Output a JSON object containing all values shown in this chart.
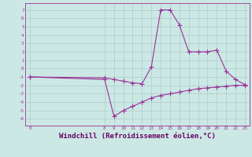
{
  "background_color": "#cce8e4",
  "grid_color": "#aacccc",
  "line_color": "#993399",
  "line_width": 0.8,
  "marker": "+",
  "marker_size": 4,
  "xlabel": "Windchill (Refroidissement éolien,°C)",
  "xlabel_fontsize": 6.5,
  "xlabel_color": "#660066",
  "ylabel_ticks": [
    -6,
    -5,
    -4,
    -3,
    -2,
    -1,
    0,
    1,
    2,
    3,
    4,
    5,
    6,
    7
  ],
  "ylim": [
    -6.8,
    7.8
  ],
  "xlim": [
    -0.5,
    23.5
  ],
  "xticks": [
    0,
    8,
    9,
    10,
    11,
    12,
    13,
    14,
    15,
    16,
    17,
    18,
    19,
    20,
    21,
    22,
    23
  ],
  "series1_x": [
    0,
    8,
    9,
    10,
    11,
    12,
    13,
    14,
    15,
    16,
    17,
    18,
    19,
    20,
    21,
    22,
    23
  ],
  "series1_y": [
    -1.0,
    -1.1,
    -1.3,
    -1.5,
    -1.7,
    -1.8,
    0.2,
    7.0,
    7.0,
    5.2,
    2.0,
    2.0,
    2.0,
    2.2,
    -0.3,
    -1.3,
    -1.9
  ],
  "series2_x": [
    0,
    8,
    9,
    10,
    11,
    12,
    13,
    14,
    15,
    16,
    17,
    18,
    19,
    20,
    21,
    22,
    23
  ],
  "series2_y": [
    -1.0,
    -1.3,
    -5.7,
    -5.0,
    -4.5,
    -4.0,
    -3.5,
    -3.2,
    -3.0,
    -2.8,
    -2.6,
    -2.4,
    -2.3,
    -2.2,
    -2.1,
    -2.0,
    -2.0
  ]
}
